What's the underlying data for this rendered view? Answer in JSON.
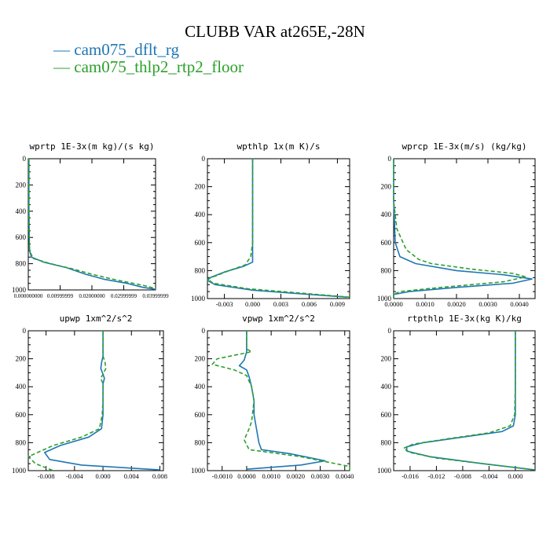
{
  "figure": {
    "title": "CLUBB VAR at265E,-28N",
    "legend": [
      {
        "name": "cam075_dflt_rg",
        "color": "#1f77b4",
        "dash": "solid"
      },
      {
        "name": "cam075_thlp2_rtp2_floor",
        "color": "#2ca02c",
        "dash": "dash"
      }
    ]
  },
  "chart_data": [
    {
      "type": "line",
      "title": "wprtp  1E-3x(m kg)/(s kg)",
      "xlim": [
        0,
        0.04
      ],
      "ylim": [
        1000,
        0
      ],
      "xticks": [
        0,
        0.01,
        0.02,
        0.03,
        0.04
      ],
      "xtick_labels": [
        "0.000000000",
        "0.00999999",
        "0.02000000",
        "0.02999999",
        "0.03999999"
      ],
      "yticks": [
        0,
        200,
        400,
        600,
        800,
        1000
      ],
      "series": [
        {
          "name": "cam075_dflt_rg",
          "points": [
            [
              0.0002,
              0
            ],
            [
              0.0002,
              200
            ],
            [
              0.0002,
              400
            ],
            [
              0.0003,
              600
            ],
            [
              0.0004,
              700
            ],
            [
              0.001,
              750
            ],
            [
              0.005,
              790
            ],
            [
              0.012,
              830
            ],
            [
              0.018,
              880
            ],
            [
              0.024,
              920
            ],
            [
              0.031,
              950
            ],
            [
              0.036,
              980
            ],
            [
              0.04,
              995
            ]
          ]
        },
        {
          "name": "cam075_thlp2_rtp2_floor",
          "points": [
            [
              0.0002,
              0
            ],
            [
              0.0002,
              200
            ],
            [
              0.0002,
              400
            ],
            [
              0.0003,
              600
            ],
            [
              0.0004,
              700
            ],
            [
              0.0015,
              760
            ],
            [
              0.007,
              800
            ],
            [
              0.014,
              840
            ],
            [
              0.02,
              880
            ],
            [
              0.026,
              915
            ],
            [
              0.032,
              945
            ],
            [
              0.037,
              970
            ],
            [
              0.04,
              990
            ]
          ]
        }
      ]
    },
    {
      "type": "line",
      "title": "wpthlp  1x(m K)/s",
      "xlim": [
        -0.0048,
        0.0103
      ],
      "ylim": [
        1000,
        0
      ],
      "xticks": [
        -0.003,
        0,
        0.003,
        0.006,
        0.009
      ],
      "xtick_labels": [
        "-0.003",
        "0.000",
        "0.003",
        "0.006",
        "0.009"
      ],
      "yticks": [
        0,
        200,
        400,
        600,
        800,
        1000
      ],
      "series": [
        {
          "name": "cam075_dflt_rg",
          "points": [
            [
              0.0,
              0
            ],
            [
              0.0,
              200
            ],
            [
              0.0,
              400
            ],
            [
              0.0,
              600
            ],
            [
              0.0,
              700
            ],
            [
              0.0,
              740
            ],
            [
              -0.001,
              770
            ],
            [
              -0.003,
              810
            ],
            [
              -0.0045,
              850
            ],
            [
              -0.0048,
              870
            ],
            [
              -0.004,
              900
            ],
            [
              0.0,
              940
            ],
            [
              0.005,
              965
            ],
            [
              0.01,
              990
            ]
          ]
        },
        {
          "name": "cam075_thlp2_rtp2_floor",
          "points": [
            [
              0.0,
              0
            ],
            [
              0.0,
              200
            ],
            [
              0.0,
              400
            ],
            [
              0.0,
              600
            ],
            [
              -0.0002,
              700
            ],
            [
              -0.0008,
              760
            ],
            [
              -0.0025,
              800
            ],
            [
              -0.004,
              840
            ],
            [
              -0.0048,
              860
            ],
            [
              -0.0042,
              890
            ],
            [
              -0.0005,
              930
            ],
            [
              0.005,
              960
            ],
            [
              0.0103,
              990
            ]
          ]
        }
      ]
    },
    {
      "type": "line",
      "title": "wprcp  1E-3x(m/s) (kg/kg)",
      "xlim": [
        0,
        0.0045
      ],
      "ylim": [
        1000,
        0
      ],
      "xticks": [
        0,
        0.001,
        0.002,
        0.003,
        0.004
      ],
      "xtick_labels": [
        "0.0000",
        "0.0010",
        "0.0020",
        "0.0030",
        "0.0040"
      ],
      "yticks": [
        0,
        200,
        400,
        600,
        800,
        1000
      ],
      "series": [
        {
          "name": "cam075_dflt_rg",
          "points": [
            [
              0.0,
              0
            ],
            [
              0.0,
              300
            ],
            [
              5e-05,
              600
            ],
            [
              0.0002,
              700
            ],
            [
              0.0007,
              750
            ],
            [
              0.002,
              800
            ],
            [
              0.0035,
              830
            ],
            [
              0.0044,
              860
            ],
            [
              0.0038,
              890
            ],
            [
              0.002,
              920
            ],
            [
              0.0005,
              950
            ],
            [
              0.0,
              970
            ],
            [
              0.0,
              1000
            ]
          ]
        },
        {
          "name": "cam075_thlp2_rtp2_floor",
          "points": [
            [
              0.0,
              0
            ],
            [
              0.0,
              300
            ],
            [
              0.0001,
              500
            ],
            [
              0.0004,
              650
            ],
            [
              0.0008,
              720
            ],
            [
              0.0012,
              750
            ],
            [
              0.0025,
              790
            ],
            [
              0.0038,
              820
            ],
            [
              0.0042,
              845
            ],
            [
              0.0035,
              880
            ],
            [
              0.0015,
              920
            ],
            [
              0.0002,
              950
            ],
            [
              0.0,
              970
            ],
            [
              0.0,
              1000
            ]
          ]
        }
      ]
    },
    {
      "type": "line",
      "title": "upwp  1xm^2/s^2",
      "xlim": [
        -0.0105,
        0.0085
      ],
      "ylim": [
        1000,
        0
      ],
      "xticks": [
        -0.008,
        -0.004,
        0,
        0.004,
        0.008
      ],
      "xtick_labels": [
        "-0.008",
        "-0.004",
        "0.000",
        "0.004",
        "0.008"
      ],
      "yticks": [
        0,
        200,
        400,
        600,
        800,
        1000
      ],
      "series": [
        {
          "name": "cam075_dflt_rg",
          "points": [
            [
              0.0,
              0
            ],
            [
              0.0,
              180
            ],
            [
              -0.0002,
              230
            ],
            [
              -0.0003,
              270
            ],
            [
              0.0,
              310
            ],
            [
              0.0002,
              340
            ],
            [
              0.0,
              380
            ],
            [
              0.0,
              500
            ],
            [
              0.0,
              600
            ],
            [
              -0.0002,
              700
            ],
            [
              -0.002,
              760
            ],
            [
              -0.006,
              820
            ],
            [
              -0.0082,
              870
            ],
            [
              -0.0075,
              920
            ],
            [
              -0.003,
              960
            ],
            [
              0.008,
              995
            ]
          ]
        },
        {
          "name": "cam075_thlp2_rtp2_floor",
          "points": [
            [
              0.0,
              0
            ],
            [
              0.0,
              180
            ],
            [
              0.0003,
              230
            ],
            [
              0.0004,
              270
            ],
            [
              0.0,
              310
            ],
            [
              -0.0003,
              340
            ],
            [
              0.0,
              380
            ],
            [
              0.0,
              500
            ],
            [
              -0.0001,
              600
            ],
            [
              -0.0005,
              700
            ],
            [
              -0.003,
              760
            ],
            [
              -0.007,
              820
            ],
            [
              -0.0105,
              900
            ],
            [
              -0.0095,
              950
            ],
            [
              -0.007,
              1000
            ]
          ]
        }
      ]
    },
    {
      "type": "line",
      "title": "vpwp  1xm^2/s^2",
      "xlim": [
        -0.0016,
        0.0042
      ],
      "ylim": [
        1000,
        0
      ],
      "xticks": [
        -0.001,
        0,
        0.001,
        0.002,
        0.003,
        0.004
      ],
      "xtick_labels": [
        "-0.0010",
        "0.0000",
        "0.0010",
        "0.0020",
        "0.0030",
        "0.0040"
      ],
      "yticks": [
        0,
        200,
        400,
        600,
        800,
        1000
      ],
      "series": [
        {
          "name": "cam075_dflt_rg",
          "points": [
            [
              0.0,
              0
            ],
            [
              0.0,
              150
            ],
            [
              -0.0001,
              210
            ],
            [
              -0.0003,
              250
            ],
            [
              0.0,
              280
            ],
            [
              0.0001,
              330
            ],
            [
              0.0002,
              400
            ],
            [
              0.0003,
              500
            ],
            [
              0.0003,
              600
            ],
            [
              0.0004,
              700
            ],
            [
              0.0005,
              800
            ],
            [
              0.0006,
              850
            ],
            [
              0.0018,
              880
            ],
            [
              0.0032,
              930
            ],
            [
              0.0022,
              960
            ],
            [
              0.0,
              990
            ]
          ]
        },
        {
          "name": "cam075_thlp2_rtp2_floor",
          "points": [
            [
              0.0,
              0
            ],
            [
              0.0,
              130
            ],
            [
              0.0002,
              150
            ],
            [
              -0.0012,
              200
            ],
            [
              -0.0014,
              240
            ],
            [
              -0.0005,
              280
            ],
            [
              0.0,
              320
            ],
            [
              0.0002,
              400
            ],
            [
              0.0003,
              500
            ],
            [
              0.0002,
              650
            ],
            [
              0.0001,
              700
            ],
            [
              -0.0001,
              780
            ],
            [
              0.0001,
              850
            ],
            [
              0.0022,
              900
            ],
            [
              0.0042,
              970
            ],
            [
              0.0042,
              1000
            ]
          ]
        }
      ]
    },
    {
      "type": "line",
      "title": "rtpthlp  1E-3x(kg K)/kg",
      "xlim": [
        -0.0185,
        0.003
      ],
      "ylim": [
        1000,
        0
      ],
      "xticks": [
        -0.016,
        -0.012,
        -0.008,
        -0.004,
        0
      ],
      "xtick_labels": [
        "-0.016",
        "-0.012",
        "-0.008",
        "-0.004",
        "0.000"
      ],
      "yticks": [
        0,
        200,
        400,
        600,
        800,
        1000
      ],
      "series": [
        {
          "name": "cam075_dflt_rg",
          "points": [
            [
              0.0,
              0
            ],
            [
              0.0,
              200
            ],
            [
              0.0,
              400
            ],
            [
              0.0,
              600
            ],
            [
              -0.0003,
              680
            ],
            [
              -0.002,
              720
            ],
            [
              -0.008,
              760
            ],
            [
              -0.014,
              800
            ],
            [
              -0.0165,
              830
            ],
            [
              -0.0165,
              860
            ],
            [
              -0.013,
              900
            ],
            [
              -0.005,
              950
            ],
            [
              0.003,
              995
            ]
          ]
        },
        {
          "name": "cam075_thlp2_rtp2_floor",
          "points": [
            [
              0.0,
              0
            ],
            [
              0.0,
              200
            ],
            [
              0.0,
              400
            ],
            [
              -0.0001,
              600
            ],
            [
              -0.0008,
              680
            ],
            [
              -0.004,
              730
            ],
            [
              -0.01,
              770
            ],
            [
              -0.0155,
              810
            ],
            [
              -0.017,
              840
            ],
            [
              -0.016,
              870
            ],
            [
              -0.012,
              910
            ],
            [
              -0.004,
              955
            ],
            [
              0.003,
              995
            ]
          ]
        }
      ]
    }
  ]
}
